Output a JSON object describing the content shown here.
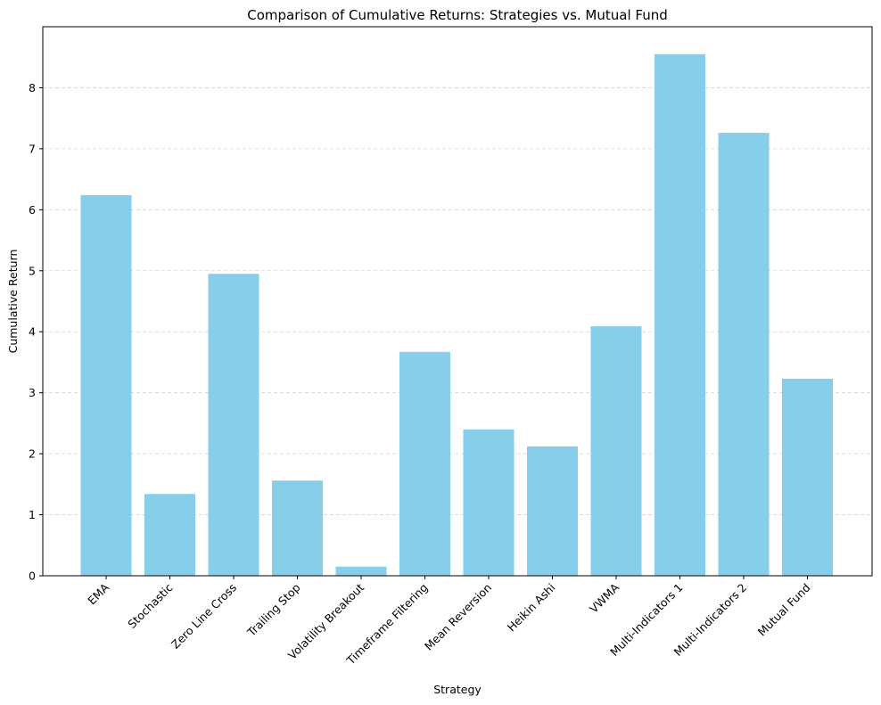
{
  "chart_data": {
    "type": "bar",
    "title": "Comparison of Cumulative Returns: Strategies vs. Mutual Fund",
    "xlabel": "Strategy",
    "ylabel": "Cumulative Return",
    "categories": [
      "EMA",
      "Stochastic",
      "Zero Line Cross",
      "Trailing Stop",
      "Volatility Breakout",
      "Timeframe Filtering",
      "Mean Reversion",
      "Heikin Ashi",
      "VWMA",
      "Multi-Indicators 1",
      "Multi-Indicators 2",
      "Mutual Fund"
    ],
    "values": [
      6.24,
      1.34,
      4.95,
      1.56,
      0.15,
      3.67,
      2.4,
      2.12,
      4.09,
      8.55,
      7.26,
      3.23
    ],
    "ylim": [
      0,
      9.0
    ],
    "yticks": [
      0,
      1,
      2,
      3,
      4,
      5,
      6,
      7,
      8
    ],
    "grid": "y-dashed",
    "bar_color": "#87ceeb",
    "legend": "none"
  }
}
